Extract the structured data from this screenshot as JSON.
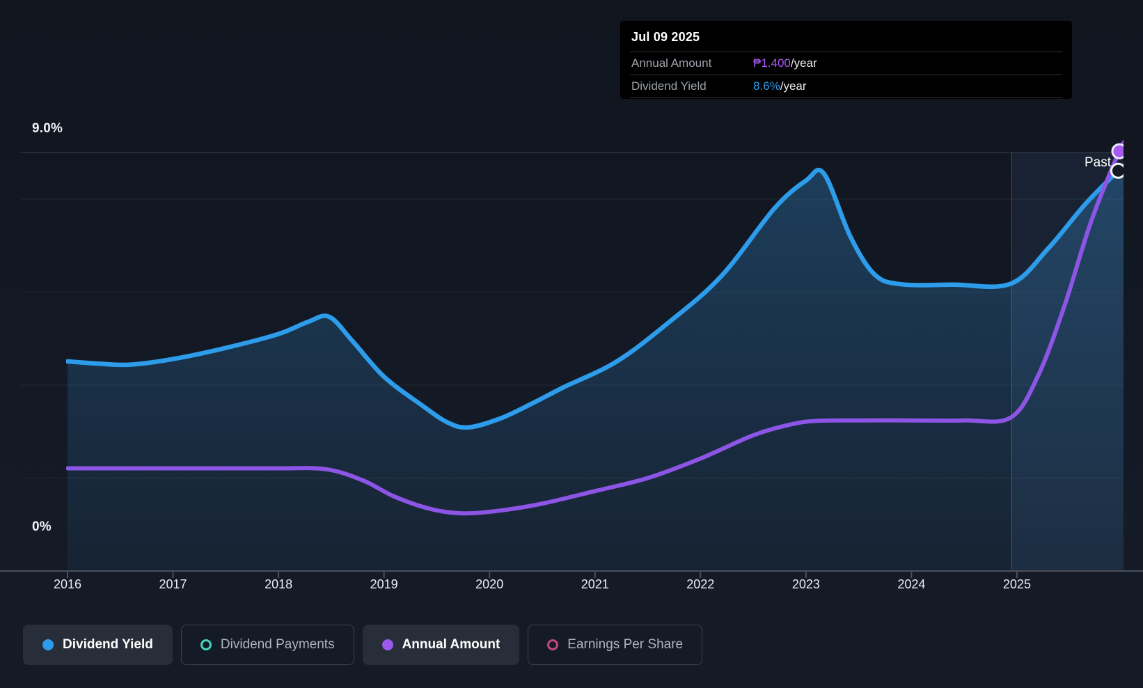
{
  "tooltip": {
    "date": "Jul 09 2025",
    "rows": [
      {
        "label": "Annual Amount",
        "value": "₱1.400",
        "suffix": "/year",
        "color": "#a95af5"
      },
      {
        "label": "Dividend Yield",
        "value": "8.6%",
        "suffix": "/year",
        "color": "#2d9ceb"
      }
    ]
  },
  "chart_data": {
    "type": "area",
    "x_ticks": [
      "2016",
      "2017",
      "2018",
      "2019",
      "2020",
      "2021",
      "2022",
      "2023",
      "2024",
      "2025"
    ],
    "y_axis": {
      "top_label": "9.0%",
      "bottom_label": "0%",
      "range_pct": [
        0,
        9.0
      ],
      "gridlines_pct": [
        2,
        4,
        6,
        8,
        9
      ]
    },
    "past_label": "Past",
    "past_region_start_year": 2024.95,
    "series": [
      {
        "name": "Dividend Yield",
        "color": "#2d9ceb",
        "unit": "%",
        "current_value": "8.6%/year",
        "points": [
          [
            2016.0,
            4.51
          ],
          [
            2016.3,
            4.46
          ],
          [
            2016.6,
            4.44
          ],
          [
            2017.0,
            4.56
          ],
          [
            2017.5,
            4.8
          ],
          [
            2018.0,
            5.1
          ],
          [
            2018.28,
            5.36
          ],
          [
            2018.48,
            5.47
          ],
          [
            2018.7,
            4.95
          ],
          [
            2019.0,
            4.18
          ],
          [
            2019.35,
            3.58
          ],
          [
            2019.6,
            3.2
          ],
          [
            2019.8,
            3.09
          ],
          [
            2020.1,
            3.28
          ],
          [
            2020.4,
            3.6
          ],
          [
            2020.7,
            3.95
          ],
          [
            2021.2,
            4.5
          ],
          [
            2021.7,
            5.35
          ],
          [
            2022.2,
            6.35
          ],
          [
            2022.7,
            7.8
          ],
          [
            2023.0,
            8.4
          ],
          [
            2023.17,
            8.55
          ],
          [
            2023.42,
            7.2
          ],
          [
            2023.65,
            6.38
          ],
          [
            2023.9,
            6.17
          ],
          [
            2024.4,
            6.16
          ],
          [
            2024.94,
            6.18
          ],
          [
            2025.3,
            6.95
          ],
          [
            2025.65,
            7.9
          ],
          [
            2025.96,
            8.61
          ],
          [
            2026.05,
            8.78
          ]
        ]
      },
      {
        "name": "Annual Amount",
        "color": "#8d55e6",
        "unit": "₱ (scaled to yield axis)",
        "current_value": "₱1.400/year",
        "points": [
          [
            2016.0,
            2.21
          ],
          [
            2016.5,
            2.21
          ],
          [
            2017.0,
            2.21
          ],
          [
            2017.5,
            2.21
          ],
          [
            2018.0,
            2.21
          ],
          [
            2018.45,
            2.19
          ],
          [
            2018.8,
            1.95
          ],
          [
            2019.1,
            1.6
          ],
          [
            2019.45,
            1.33
          ],
          [
            2019.75,
            1.24
          ],
          [
            2020.1,
            1.3
          ],
          [
            2020.5,
            1.45
          ],
          [
            2021.0,
            1.72
          ],
          [
            2021.5,
            2.0
          ],
          [
            2022.0,
            2.42
          ],
          [
            2022.5,
            2.92
          ],
          [
            2022.85,
            3.15
          ],
          [
            2023.1,
            3.23
          ],
          [
            2023.5,
            3.24
          ],
          [
            2024.0,
            3.24
          ],
          [
            2024.5,
            3.24
          ],
          [
            2024.94,
            3.3
          ],
          [
            2025.2,
            4.2
          ],
          [
            2025.45,
            5.7
          ],
          [
            2025.7,
            7.5
          ],
          [
            2025.97,
            9.03
          ],
          [
            2026.05,
            9.3
          ]
        ]
      }
    ],
    "end_markers": [
      {
        "series": "Annual Amount",
        "year": 2025.97,
        "pct": 9.03,
        "fill": "#a55af0",
        "stroke": "#efe5ff"
      },
      {
        "series": "Dividend Yield",
        "year": 2025.96,
        "pct": 8.61,
        "fill": "#141923",
        "stroke": "#f2f5f8"
      }
    ]
  },
  "legend": {
    "items": [
      {
        "label": "Dividend Yield",
        "color": "#2d9ceb",
        "marker": "filled",
        "active": true
      },
      {
        "label": "Dividend Payments",
        "color": "#45d5bc",
        "marker": "outline",
        "active": false
      },
      {
        "label": "Annual Amount",
        "color": "#9b5aec",
        "marker": "filled",
        "active": true
      },
      {
        "label": "Earnings Per Share",
        "color": "#c44780",
        "marker": "outline",
        "active": false
      }
    ]
  }
}
